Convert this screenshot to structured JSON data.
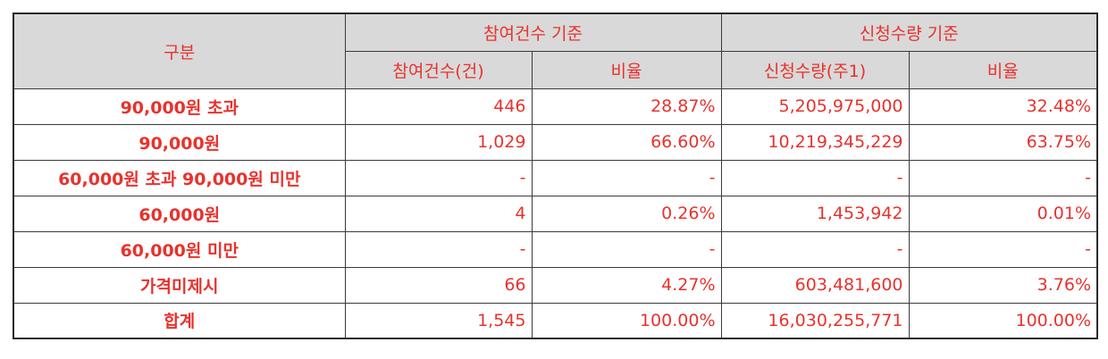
{
  "table": {
    "header": {
      "category": "구분",
      "group_participation": "참여건수 기준",
      "group_quantity": "신청수량 기준",
      "sub_participation_count": "참여건수(건)",
      "sub_participation_ratio": "비율",
      "sub_quantity_count": "신청수량(주1)",
      "sub_quantity_ratio": "비율"
    },
    "rows": [
      {
        "label": "90,000원 초과",
        "count": "446",
        "count_ratio": "28.87%",
        "qty": "5,205,975,000",
        "qty_ratio": "32.48%"
      },
      {
        "label": "90,000원",
        "count": "1,029",
        "count_ratio": "66.60%",
        "qty": "10,219,345,229",
        "qty_ratio": "63.75%"
      },
      {
        "label": "60,000원 초과 90,000원 미만",
        "count": "-",
        "count_ratio": "-",
        "qty": "-",
        "qty_ratio": "-"
      },
      {
        "label": "60,000원",
        "count": "4",
        "count_ratio": "0.26%",
        "qty": "1,453,942",
        "qty_ratio": "0.01%"
      },
      {
        "label": "60,000원 미만",
        "count": "-",
        "count_ratio": "-",
        "qty": "-",
        "qty_ratio": "-"
      },
      {
        "label": "가격미제시",
        "count": "66",
        "count_ratio": "4.27%",
        "qty": "603,481,600",
        "qty_ratio": "3.76%"
      },
      {
        "label": "합계",
        "count": "1,545",
        "count_ratio": "100.00%",
        "qty": "16,030,255,771",
        "qty_ratio": "100.00%"
      }
    ]
  }
}
